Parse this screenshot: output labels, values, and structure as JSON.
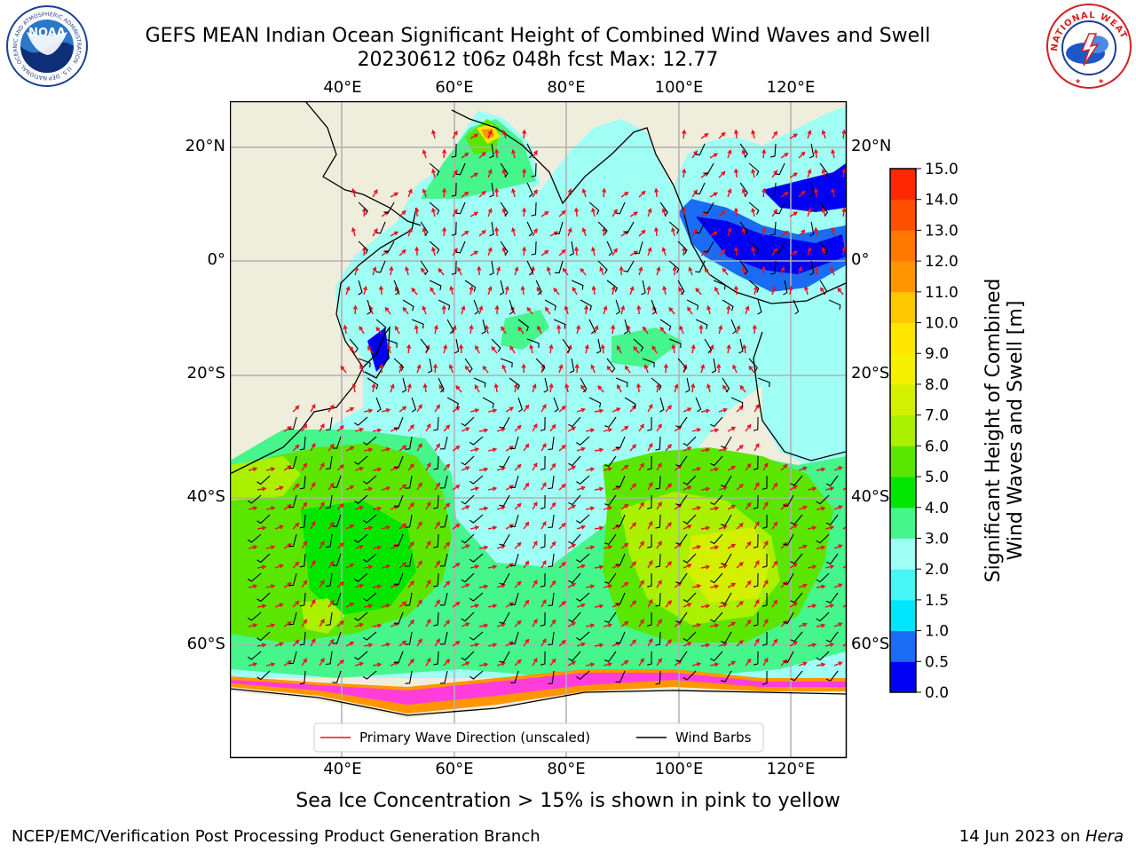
{
  "header": {
    "title_line1": "GEFS MEAN Indian Ocean Significant Height of Combined Wind Waves and Swell",
    "title_line2": "20230612 t06z 048h fcst   Max: 12.77"
  },
  "logos": {
    "noaa_text": "NOAA",
    "noaa_ring_text": "NATIONAL OCEANIC AND ATMOSPHERIC ADMINISTRATION · U.S. DEPARTMENT OF COMMERCE",
    "nws_ring_text": "NATIONAL WEATHER SERVICE"
  },
  "map": {
    "lon_labels": [
      "40°E",
      "60°E",
      "80°E",
      "100°E",
      "120°E"
    ],
    "lat_labels": [
      "20°N",
      "0°",
      "20°S",
      "40°S",
      "60°S"
    ],
    "lon_values": [
      40,
      60,
      80,
      100,
      120
    ],
    "lat_values": [
      20,
      0,
      -20,
      -40,
      -60
    ],
    "extent": {
      "lon_min": 20,
      "lon_max": 130,
      "lat_min": -70,
      "lat_max": 28
    },
    "colors": {
      "land": "#efeddc",
      "ice": "#ffffff",
      "grid": "#b0b0b0",
      "coast": "#000000",
      "wave_arrow": "#e8121e"
    }
  },
  "legend": {
    "wave_label": "Primary Wave Direction (unscaled)",
    "wind_label": "Wind Barbs"
  },
  "colorbar": {
    "label_line1": "Significant Height of Combined",
    "label_line2": "Wind Waves and Swell [m]",
    "ticks": [
      "0.0",
      "0.5",
      "1.0",
      "1.5",
      "2.0",
      "3.0",
      "4.0",
      "5.0",
      "6.0",
      "7.0",
      "8.0",
      "9.0",
      "10.0",
      "11.0",
      "12.0",
      "13.0",
      "14.0",
      "15.0"
    ],
    "colors": [
      "#0000f5",
      "#1a6cf5",
      "#00e5ff",
      "#46f5f5",
      "#a0fff5",
      "#46f58c",
      "#00e600",
      "#5ae600",
      "#aaf000",
      "#d2f000",
      "#f5f000",
      "#ffe600",
      "#ffc800",
      "#ff9600",
      "#ff7800",
      "#ff5000",
      "#ff2800"
    ]
  },
  "footer": {
    "sea_ice_note": "Sea Ice Concentration > 15% is shown in pink to yellow",
    "credit": "NCEP/EMC/Verification Post Processing Product Generation Branch",
    "date": "14 Jun 2023 on ",
    "machine": "Hera"
  }
}
